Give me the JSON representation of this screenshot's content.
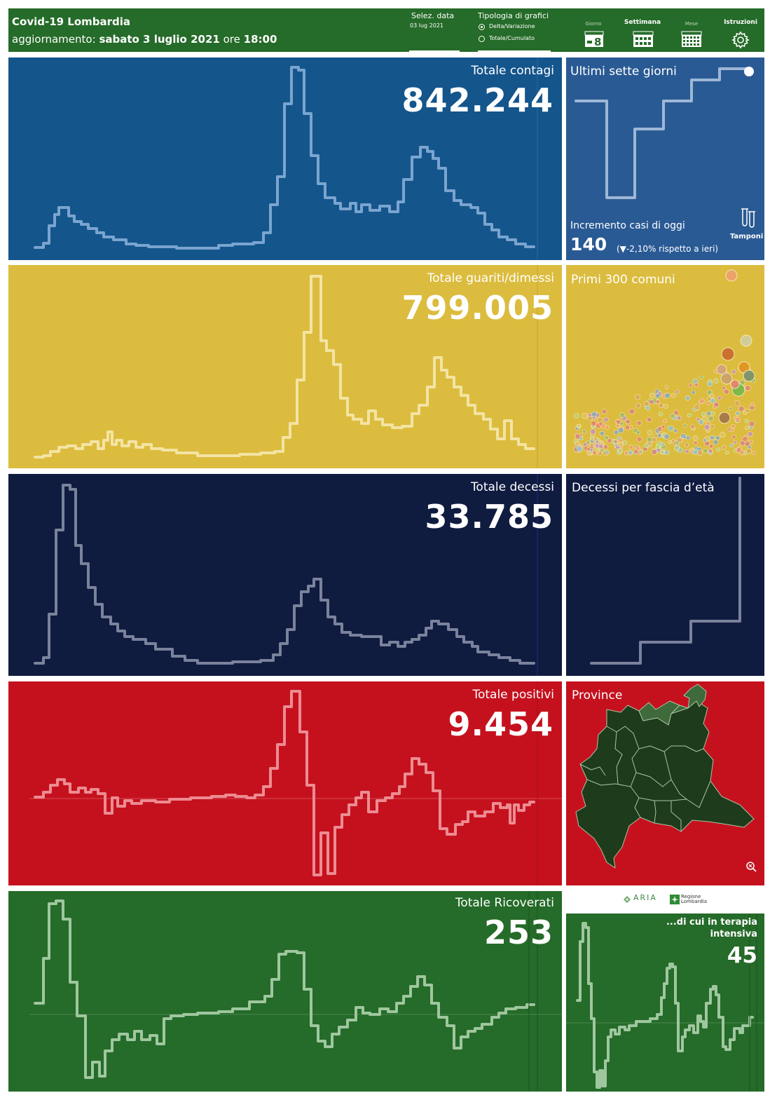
{
  "header": {
    "title": "Covid-19 Lombardia",
    "update_prefix": "aggiornamento:",
    "update_date": "sabato 3 luglio 2021",
    "update_mid": "ore",
    "update_time": "18:00",
    "date_selector_label": "Selez. data",
    "date_selector_value": "03 lug 2021",
    "chart_type_label": "Tipologia di grafici",
    "chart_type_options": [
      "Delta/Variazione",
      "Totale/Cumulato"
    ],
    "chart_type_selected": "Delta/Variazione",
    "nav": {
      "giorno_label": "Giorno",
      "giorno_value": "8",
      "settimana_label": "Settimana",
      "mese_label": "Mese",
      "istruzioni_label": "Istruzioni"
    }
  },
  "panels": {
    "contagi": {
      "label": "Totale contagi",
      "value": "842.244",
      "color": "#14558c"
    },
    "ultimi": {
      "label": "Ultimi sette giorni",
      "incr_label": "Incremento casi di oggi",
      "incr_value": "140",
      "incr_delta": "(▼-2,10% rispetto a  ieri)",
      "tamponi_label": "Tamponi",
      "color": "#2a5a94"
    },
    "guariti": {
      "label": "Totale guariti/dimessi",
      "value": "799.005",
      "color": "#dcbc3e"
    },
    "comuni": {
      "label": "Primi 300 comuni",
      "color": "#dcbc3e"
    },
    "decessi": {
      "label": "Totale decessi",
      "value": "33.785",
      "color": "#0f1b3f"
    },
    "fascia": {
      "label": "Decessi per fascia d’età",
      "color": "#0f1b3f"
    },
    "positivi": {
      "label": "Totale positivi",
      "value": "9.454",
      "color": "#c5111e"
    },
    "province": {
      "label": "Province",
      "color": "#c5111e"
    },
    "ricoverati": {
      "label": "Totale Ricoverati",
      "value": "253",
      "color": "#256b29"
    },
    "terapia": {
      "label": "...di cui in terapia intensiva",
      "value": "45",
      "color": "#256b29"
    }
  },
  "logos": {
    "aria": "ARIA",
    "regione": "Regione Lombardia"
  }
}
